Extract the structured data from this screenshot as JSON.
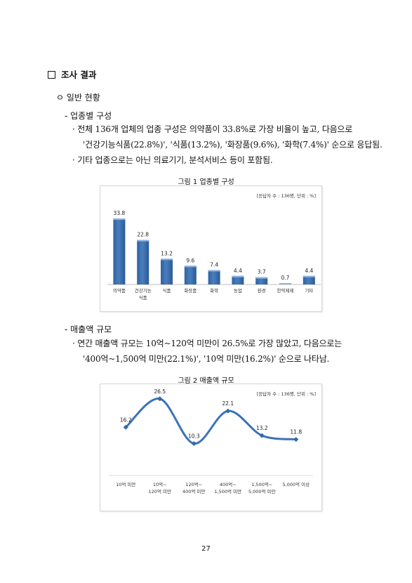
{
  "section": {
    "title": "조사 결과"
  },
  "subsection": {
    "title": "ㅇ 일반 현황"
  },
  "industry": {
    "heading": "- 업종별 구성",
    "bullet1_line1": "· 전체 136개 업체의 업종 구성은 의약품이 33.8%로 가장 비율이 높고, 다음으로",
    "bullet1_line2": "'건강기능식품(22.8%)', '식품(13.2%), '화장품(9.6%), '화학(7.4%)' 순으로 응답됨.",
    "bullet2": "· 기타 업종으로는 아닌 의료기기, 분석서비스 등이 포함됨.",
    "figure_title": "그림 1 업종별 구성",
    "note": "[응답자 수 : 136명, 단위 : %]"
  },
  "sales": {
    "heading": "- 매출액 규모",
    "bullet1_line1": "· 연간 매출액 규모는 10억~120억 미만이 26.5%로 가장 많았고, 다음으로는",
    "bullet1_line2": "'400억~1,500억 미만(22.1%)', '10억 미만(16.2%)' 순으로 나타남.",
    "figure_title": "그림 2 매출액 규모",
    "note": "[응답자 수 : 136명, 단위 : %]"
  },
  "page_number": "27",
  "colors": {
    "bar": "#4a7ebb",
    "line": "#3b73b9",
    "marker": "#3568a6"
  },
  "chart_data": [
    {
      "type": "bar",
      "categories": [
        "의약품",
        "건강기능\n식품",
        "식품",
        "화장품",
        "화학",
        "농업",
        "환경",
        "한약제제",
        "기타"
      ],
      "values": [
        33.8,
        22.8,
        13.2,
        9.6,
        7.4,
        4.4,
        3.7,
        0.7,
        4.4
      ],
      "value_labels": [
        "33.8",
        "22.8",
        "13.2",
        "9.6",
        "7.4",
        "4.4",
        "3.7",
        "0.7",
        "4.4"
      ],
      "ylim": [
        0,
        36
      ],
      "grid": false
    },
    {
      "type": "line",
      "categories": [
        "10억 미만",
        "10억~\n120억 미만",
        "120억~\n400억 미만",
        "400억~\n1,500억 미만",
        "1,500억~\n5,000억 미만",
        "5,000억 이상"
      ],
      "values": [
        16.2,
        26.5,
        10.3,
        22.1,
        13.2,
        11.8
      ],
      "value_labels": [
        "16.2",
        "26.5",
        "10.3",
        "22.1",
        "13.2",
        "11.8"
      ],
      "ylim": [
        0,
        30
      ],
      "smooth": true,
      "grid": false
    }
  ]
}
